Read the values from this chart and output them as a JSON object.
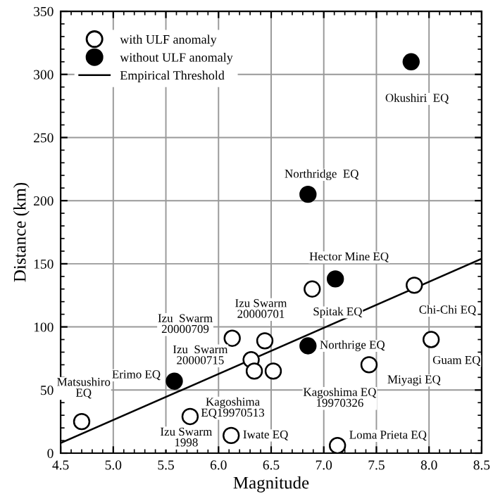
{
  "chart_data": {
    "type": "scatter",
    "xlabel": "Magnitude",
    "ylabel": "Distance (km)",
    "xlim": [
      4.5,
      8.5
    ],
    "ylim": [
      0,
      350
    ],
    "xticks": [
      {
        "value": 4.5,
        "label": "4.5"
      },
      {
        "value": 5.0,
        "label": "5.0"
      },
      {
        "value": 5.5,
        "label": "5.5"
      },
      {
        "value": 6.0,
        "label": "6.0"
      },
      {
        "value": 6.5,
        "label": "6.5"
      },
      {
        "value": 7.0,
        "label": "7.0"
      },
      {
        "value": 7.5,
        "label": "7.5"
      },
      {
        "value": 8.0,
        "label": "8.0"
      },
      {
        "value": 8.5,
        "label": "8.5"
      }
    ],
    "yticks": [
      0,
      50,
      100,
      150,
      200,
      250,
      300,
      350
    ],
    "grid": true,
    "legend": "top left",
    "marker": "circle",
    "series": [
      {
        "name": "with ULF anomaly",
        "color": "#ffffff",
        "x": [
          4.7,
          5.73,
          6.12,
          7.13,
          6.13,
          6.44,
          6.31,
          6.34,
          6.52,
          6.89,
          7.86,
          7.43,
          8.02
        ],
        "values": [
          25,
          29,
          14,
          6,
          91,
          89,
          74,
          65,
          65,
          130,
          133,
          70,
          90
        ]
      },
      {
        "name": "without ULF anomaly",
        "color": "#000000",
        "x": [
          7.83,
          6.85,
          7.11,
          6.85,
          5.58
        ],
        "values": [
          310,
          205,
          138,
          85,
          57
        ]
      },
      {
        "name": "Empirical Threshold",
        "type": "line",
        "marker": "none",
        "color": "#000000",
        "x": [
          4.5,
          8.5
        ],
        "values": [
          8,
          154
        ]
      }
    ],
    "annotations": [
      {
        "text": "Okushiri  EQ",
        "x": 7.83,
        "y": 310
      },
      {
        "text": "Northridge  EQ",
        "x": 6.85,
        "y": 205
      },
      {
        "text": "Hector Mine EQ",
        "x": 7.11,
        "y": 138
      },
      {
        "text": "Spitak EQ",
        "x": 6.89,
        "y": 130
      },
      {
        "text": "Chi-Chi EQ",
        "x": 7.86,
        "y": 133
      },
      {
        "text": "Northrige EQ",
        "x": 6.85,
        "y": 85
      },
      {
        "text": "Guam EQ",
        "x": 8.02,
        "y": 90
      },
      {
        "text": "Miyagi EQ",
        "x": 7.43,
        "y": 70
      },
      {
        "text": "Kagoshima EQ\n19970326",
        "x": 6.52,
        "y": 65
      },
      {
        "text": "Kagoshima\nEQ19970513",
        "x": 6.34,
        "y": 65
      },
      {
        "text": "Izu  Swarm\n20000715",
        "x": 6.31,
        "y": 74
      },
      {
        "text": "Izu  Swarm\n20000709",
        "x": 6.13,
        "y": 91
      },
      {
        "text": "Izu Swarm\n20000701",
        "x": 6.44,
        "y": 89
      },
      {
        "text": "Erimo EQ",
        "x": 5.58,
        "y": 57
      },
      {
        "text": "Matsushiro\nEQ",
        "x": 4.7,
        "y": 25
      },
      {
        "text": "Izu Swarm\n1998",
        "x": 5.73,
        "y": 29
      },
      {
        "text": "Iwate EQ",
        "x": 6.12,
        "y": 14
      },
      {
        "text": "Loma Prieta EQ",
        "x": 7.13,
        "y": 6
      }
    ]
  }
}
